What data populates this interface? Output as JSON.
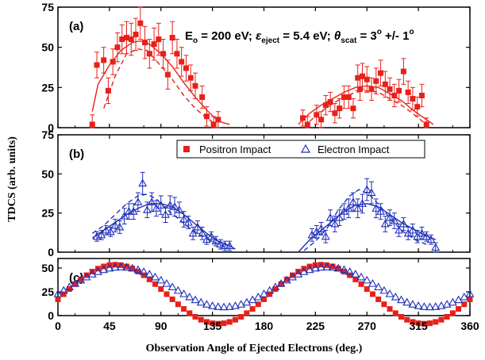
{
  "chart_data": {
    "type": "scatter",
    "ylabel": "TDCS (arb. units)",
    "xlabel": "Observation Angle of Ejected Electrons (deg.)",
    "xlim": [
      0,
      360
    ],
    "xticks": [
      0,
      45,
      90,
      135,
      180,
      225,
      270,
      315,
      360
    ],
    "colors": {
      "positron": "#e8201a",
      "electron": "#1f2fb8"
    },
    "annotation": {
      "e0": "E",
      "e0_sub": "o",
      "e0_val": " = 200 eV;  ",
      "eps": "ε",
      "eps_sub": "eject",
      "eps_val": " = 5.4 eV; ",
      "theta": "θ",
      "theta_sub": "scat",
      "theta_val": " = 3",
      "deg": "o",
      "pm": " +/- 1",
      "deg2": "o"
    },
    "legend": {
      "position": "top-center",
      "entries": [
        "Positron Impact",
        "Electron Impact"
      ]
    },
    "panels": [
      {
        "label": "(a)",
        "ylim": [
          0,
          75
        ],
        "yticks": [
          0,
          25,
          50,
          75
        ],
        "series": [
          {
            "name": "Positron Impact",
            "marker": "square",
            "color": "#e8201a",
            "x": [
              30,
              34,
              40,
              44,
              48,
              52,
              56,
              60,
              64,
              68,
              72,
              76,
              80,
              84,
              88,
              92,
              96,
              100,
              104,
              108,
              112,
              116,
              120,
              126,
              130,
              136,
              140,
              214,
              218,
              226,
              230,
              234,
              238,
              242,
              246,
              250,
              254,
              258,
              262,
              264,
              266,
              270,
              274,
              278,
              282,
              286,
              290,
              294,
              298,
              302,
              306,
              310,
              314,
              318,
              322
            ],
            "y": [
              2,
              39,
              42,
              23,
              41,
              50,
              55,
              56,
              55,
              58,
              65,
              53,
              46,
              52,
              55,
              46,
              33,
              56,
              46,
              41,
              37,
              31,
              26,
              19,
              7,
              2,
              5,
              6,
              2,
              8,
              5,
              14,
              16,
              9,
              12,
              19,
              19,
              12,
              31,
              24,
              32,
              30,
              24,
              29,
              34,
              27,
              24,
              20,
              23,
              35,
              22,
              18,
              13,
              20,
              2
            ],
            "err": [
              6,
              8,
              8,
              8,
              8,
              9,
              9,
              10,
              10,
              10,
              10,
              10,
              9,
              10,
              10,
              9,
              9,
              10,
              9,
              9,
              8,
              8,
              8,
              7,
              6,
              5,
              5,
              5,
              5,
              6,
              5,
              6,
              6,
              6,
              6,
              7,
              7,
              6,
              8,
              7,
              8,
              8,
              7,
              8,
              8,
              8,
              7,
              7,
              7,
              8,
              7,
              7,
              6,
              7,
              4
            ],
            "fit": [
              [
                30,
                10
              ],
              [
                35,
                27
              ],
              [
                45,
                39
              ],
              [
                55,
                48
              ],
              [
                65,
                53
              ],
              [
                72,
                54
              ],
              [
                80,
                52
              ],
              [
                90,
                46
              ],
              [
                100,
                38
              ],
              [
                110,
                28
              ],
              [
                120,
                19
              ],
              [
                130,
                11
              ],
              [
                140,
                4
              ],
              [
                150,
                2
              ],
              [
                210,
                2
              ],
              [
                220,
                9
              ],
              [
                230,
                14
              ],
              [
                240,
                18
              ],
              [
                250,
                22
              ],
              [
                260,
                25
              ],
              [
                270,
                26
              ],
              [
                280,
                25
              ],
              [
                290,
                21
              ],
              [
                300,
                17
              ],
              [
                310,
                11
              ],
              [
                320,
                6
              ],
              [
                328,
                2
              ]
            ],
            "fit_dashed": [
              [
                40,
                12
              ],
              [
                50,
                32
              ],
              [
                60,
                46
              ],
              [
                70,
                49
              ],
              [
                78,
                48
              ],
              [
                88,
                40
              ],
              [
                100,
                30
              ],
              [
                110,
                20
              ],
              [
                120,
                12
              ],
              [
                130,
                6
              ],
              [
                138,
                2
              ],
              [
                220,
                4
              ],
              [
                230,
                10
              ],
              [
                240,
                15
              ],
              [
                250,
                19
              ],
              [
                260,
                22
              ],
              [
                270,
                23
              ],
              [
                280,
                22
              ],
              [
                290,
                18
              ],
              [
                300,
                14
              ],
              [
                310,
                9
              ],
              [
                320,
                3
              ]
            ]
          }
        ]
      },
      {
        "label": "(b)",
        "ylim": [
          0,
          75
        ],
        "yticks": [
          0,
          25,
          50,
          75
        ],
        "series": [
          {
            "name": "Electron Impact",
            "marker": "triangle",
            "color": "#1f2fb8",
            "x": [
              34,
              38,
              42,
              46,
              50,
              54,
              58,
              62,
              66,
              70,
              74,
              78,
              82,
              86,
              90,
              94,
              98,
              102,
              106,
              110,
              114,
              118,
              122,
              126,
              130,
              134,
              138,
              142,
              146,
              150,
              222,
              226,
              230,
              234,
              238,
              242,
              246,
              250,
              254,
              258,
              262,
              266,
              270,
              274,
              278,
              282,
              286,
              290,
              294,
              298,
              302,
              306,
              310,
              314,
              318,
              322,
              326,
              330
            ],
            "y": [
              10,
              11,
              14,
              13,
              17,
              16,
              23,
              26,
              26,
              32,
              44,
              27,
              32,
              28,
              30,
              24,
              30,
              29,
              27,
              21,
              19,
              12,
              16,
              12,
              8,
              10,
              7,
              5,
              4,
              4,
              11,
              13,
              15,
              10,
              22,
              18,
              22,
              26,
              28,
              32,
              28,
              31,
              40,
              38,
              28,
              26,
              18,
              22,
              20,
              14,
              18,
              12,
              14,
              10,
              12,
              10,
              8,
              3
            ],
            "err": [
              3,
              3,
              3,
              3,
              4,
              4,
              5,
              5,
              5,
              6,
              7,
              5,
              6,
              5,
              6,
              5,
              6,
              6,
              5,
              5,
              4,
              4,
              4,
              4,
              3,
              3,
              3,
              3,
              3,
              3,
              4,
              4,
              4,
              4,
              5,
              5,
              5,
              5,
              6,
              6,
              6,
              6,
              7,
              7,
              6,
              5,
              5,
              5,
              5,
              4,
              4,
              4,
              4,
              4,
              4,
              3,
              3,
              3
            ],
            "fit": [
              [
                30,
                9
              ],
              [
                40,
                14
              ],
              [
                50,
                19
              ],
              [
                60,
                24
              ],
              [
                70,
                28
              ],
              [
                80,
                31
              ],
              [
                90,
                31
              ],
              [
                100,
                29
              ],
              [
                110,
                24
              ],
              [
                120,
                18
              ],
              [
                130,
                12
              ],
              [
                140,
                7
              ],
              [
                150,
                4
              ],
              [
                155,
                2
              ],
              [
                210,
                0
              ],
              [
                220,
                8
              ],
              [
                230,
                14
              ],
              [
                240,
                20
              ],
              [
                250,
                26
              ],
              [
                260,
                30
              ],
              [
                270,
                31
              ],
              [
                280,
                29
              ],
              [
                290,
                24
              ],
              [
                300,
                19
              ],
              [
                310,
                15
              ],
              [
                320,
                11
              ],
              [
                330,
                8
              ]
            ],
            "fit_dashed": [
              [
                30,
                12
              ],
              [
                40,
                17
              ],
              [
                50,
                24
              ],
              [
                60,
                31
              ],
              [
                70,
                36
              ],
              [
                78,
                37
              ],
              [
                86,
                34
              ],
              [
                94,
                28
              ],
              [
                104,
                22
              ],
              [
                114,
                16
              ],
              [
                124,
                11
              ],
              [
                134,
                7
              ],
              [
                144,
                4
              ],
              [
                215,
                1
              ],
              [
                225,
                7
              ],
              [
                235,
                15
              ],
              [
                245,
                27
              ],
              [
                255,
                36
              ],
              [
                263,
                40
              ],
              [
                272,
                37
              ],
              [
                282,
                29
              ],
              [
                292,
                20
              ],
              [
                302,
                13
              ],
              [
                312,
                8
              ],
              [
                322,
                5
              ]
            ]
          }
        ]
      },
      {
        "label": "(c)",
        "ylim": [
          0,
          60
        ],
        "yticks": [
          0,
          25,
          50
        ],
        "series": [
          {
            "name": "Positron Impact",
            "marker": "square",
            "color": "#e8201a",
            "model": "theory",
            "mean": 22.5,
            "amp": 31,
            "peak": 50
          },
          {
            "name": "Electron Impact",
            "marker": "triangle",
            "color": "#1f2fb8",
            "model": "theory",
            "mean": 30,
            "amp": 21,
            "peak": 55
          }
        ]
      }
    ]
  }
}
